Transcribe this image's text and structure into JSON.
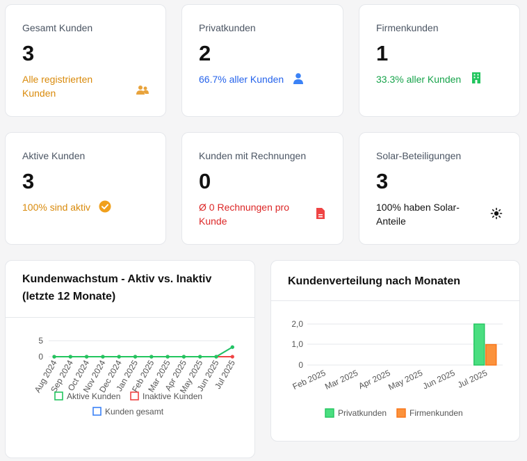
{
  "stats": [
    {
      "label": "Gesamt Kunden",
      "value": "3",
      "sub": "Alle registrierten Kunden",
      "icon": "users-icon",
      "color": "#d98a0b"
    },
    {
      "label": "Privatkunden",
      "value": "2",
      "sub": "66.7% aller Kunden",
      "icon": "user-icon",
      "color": "#2563eb"
    },
    {
      "label": "Firmenkunden",
      "value": "1",
      "sub": "33.3% aller Kunden",
      "icon": "building-icon",
      "color": "#16a34a"
    },
    {
      "label": "Aktive Kunden",
      "value": "3",
      "sub": "100% sind aktiv",
      "icon": "check-circle-icon",
      "color": "#d98a0b"
    },
    {
      "label": "Kunden mit Rechnungen",
      "value": "0",
      "sub": "Ø 0 Rechnungen pro Kunde",
      "icon": "invoice-icon",
      "color": "#dc2626"
    },
    {
      "label": "Solar-Beteiligungen",
      "value": "3",
      "sub": "100% haben Solar-Anteile",
      "icon": "sun-icon",
      "color": "#111111"
    }
  ],
  "chart_data": [
    {
      "type": "line",
      "title": "Kundenwachstum - Aktiv vs. Inaktiv (letzte 12 Monate)",
      "categories": [
        "Aug 2024",
        "Sep 2024",
        "Oct 2024",
        "Nov 2024",
        "Dec 2024",
        "Jan 2025",
        "Feb 2025",
        "Mar 2025",
        "Apr 2025",
        "May 2025",
        "Jun 2025",
        "Jul 2025"
      ],
      "series": [
        {
          "name": "Aktive Kunden",
          "color": "#22c55e",
          "values": [
            0,
            0,
            0,
            0,
            0,
            0,
            0,
            0,
            0,
            0,
            0,
            3
          ]
        },
        {
          "name": "Inaktive Kunden",
          "color": "#ef4444",
          "values": [
            0,
            0,
            0,
            0,
            0,
            0,
            0,
            0,
            0,
            0,
            0,
            0
          ]
        },
        {
          "name": "Kunden gesamt",
          "color": "#3b82f6",
          "values": [
            0,
            0,
            0,
            0,
            0,
            0,
            0,
            0,
            0,
            0,
            0,
            3
          ]
        }
      ],
      "yticks": [
        "0",
        "5"
      ],
      "ylim": [
        0,
        5
      ]
    },
    {
      "type": "bar",
      "title": "Kundenverteilung nach Monaten",
      "categories": [
        "Feb 2025",
        "Mar 2025",
        "Apr 2025",
        "May 2025",
        "Jun 2025",
        "Jul 2025"
      ],
      "series": [
        {
          "name": "Privatkunden",
          "color": "#22c55e",
          "fill": "#4ade80",
          "values": [
            0,
            0,
            0,
            0,
            0,
            2
          ]
        },
        {
          "name": "Firmenkunden",
          "color": "#f97316",
          "fill": "#fb923c",
          "values": [
            0,
            0,
            0,
            0,
            0,
            1
          ]
        }
      ],
      "yticks": [
        "0",
        "1,0",
        "2,0"
      ],
      "ylim": [
        0,
        2
      ]
    }
  ]
}
